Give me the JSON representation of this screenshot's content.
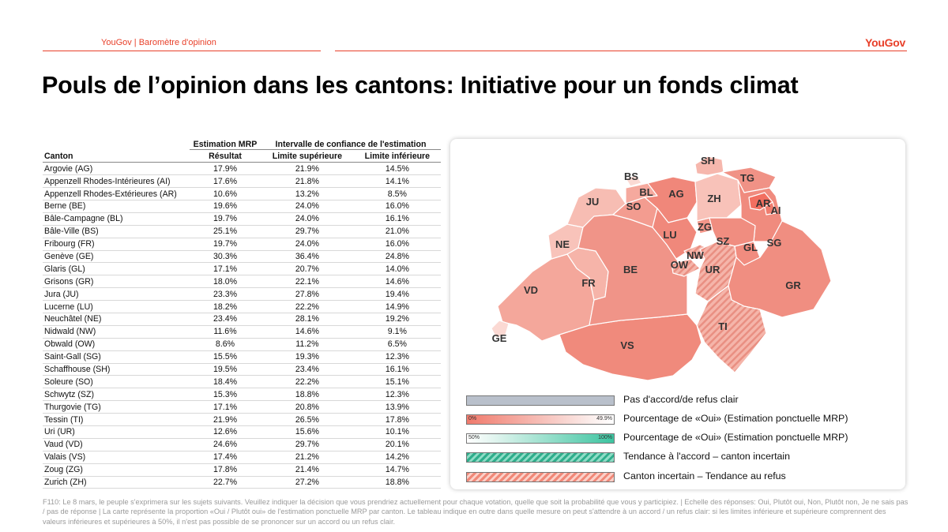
{
  "header": {
    "brand_text": "YouGov | Baromètre d'opinion",
    "logo_text": "YouGov",
    "title": "Pouls de l’opinion dans les cantons: Initiative pour un fonds climat"
  },
  "table": {
    "group_headers": {
      "estimate": "Estimation MRP",
      "interval": "Intervalle de confiance de l'estimation"
    },
    "columns": [
      "Canton",
      "Résultat",
      "Limite supérieure",
      "Limite inférieure"
    ],
    "rows": [
      [
        "Argovie (AG)",
        "17.9%",
        "21.9%",
        "14.5%"
      ],
      [
        "Appenzell Rhodes-Intérieures (AI)",
        "17.6%",
        "21.8%",
        "14.1%"
      ],
      [
        "Appenzell Rhodes-Extérieures (AR)",
        "10.6%",
        "13.2%",
        "8.5%"
      ],
      [
        "Berne (BE)",
        "19.6%",
        "24.0%",
        "16.0%"
      ],
      [
        "Bâle-Campagne (BL)",
        "19.7%",
        "24.0%",
        "16.1%"
      ],
      [
        "Bâle-Ville (BS)",
        "25.1%",
        "29.7%",
        "21.0%"
      ],
      [
        "Fribourg (FR)",
        "19.7%",
        "24.0%",
        "16.0%"
      ],
      [
        "Genève (GE)",
        "30.3%",
        "36.4%",
        "24.8%"
      ],
      [
        "Glaris (GL)",
        "17.1%",
        "20.7%",
        "14.0%"
      ],
      [
        "Grisons (GR)",
        "18.0%",
        "22.1%",
        "14.6%"
      ],
      [
        "Jura (JU)",
        "23.3%",
        "27.8%",
        "19.4%"
      ],
      [
        "Lucerne (LU)",
        "18.2%",
        "22.2%",
        "14.9%"
      ],
      [
        "Neuchâtel (NE)",
        "23.4%",
        "28.1%",
        "19.2%"
      ],
      [
        "Nidwald (NW)",
        "11.6%",
        "14.6%",
        "9.1%"
      ],
      [
        "Obwald (OW)",
        "8.6%",
        "11.2%",
        "6.5%"
      ],
      [
        "Saint-Gall (SG)",
        "15.5%",
        "19.3%",
        "12.3%"
      ],
      [
        "Schaffhouse (SH)",
        "19.5%",
        "23.4%",
        "16.1%"
      ],
      [
        "Soleure (SO)",
        "18.4%",
        "22.2%",
        "15.1%"
      ],
      [
        "Schwytz (SZ)",
        "15.3%",
        "18.8%",
        "12.3%"
      ],
      [
        "Thurgovie (TG)",
        "17.1%",
        "20.8%",
        "13.9%"
      ],
      [
        "Tessin (TI)",
        "21.9%",
        "26.5%",
        "17.8%"
      ],
      [
        "Uri (UR)",
        "12.6%",
        "15.6%",
        "10.1%"
      ],
      [
        "Vaud (VD)",
        "24.6%",
        "29.7%",
        "20.1%"
      ],
      [
        "Valais (VS)",
        "17.4%",
        "21.2%",
        "14.2%"
      ],
      [
        "Zoug (ZG)",
        "17.8%",
        "21.4%",
        "14.7%"
      ],
      [
        "Zurich (ZH)",
        "22.7%",
        "27.2%",
        "18.8%"
      ]
    ]
  },
  "map": {
    "labels": [
      "SH",
      "BS",
      "TG",
      "BL",
      "AG",
      "ZH",
      "JU",
      "SO",
      "AR",
      "AI",
      "ZG",
      "LU",
      "SZ",
      "SG",
      "GL",
      "NE",
      "NW",
      "OW",
      "UR",
      "BE",
      "GR",
      "FR",
      "VD",
      "TI",
      "GE",
      "VS"
    ]
  },
  "legend": {
    "items": [
      "Pas d'accord/de refus clair",
      "Pourcentage de «Oui» (Estimation ponctuelle MRP)",
      "Pourcentage de «Oui» (Estimation ponctuelle MRP)",
      "Tendance à l'accord – canton incertain",
      "Canton incertain – Tendance au refus"
    ],
    "red_scale": [
      "0%",
      "49.9%"
    ],
    "green_scale": [
      "50%",
      "100%"
    ]
  },
  "colors": {
    "brand": "#e8402a",
    "map_dark": "#f08a7c",
    "map_mid": "#f4a79b",
    "map_light": "#fbd9d3",
    "panel_grey": "#b9c0cb",
    "green": "#3cc4a0"
  },
  "footnote": "F110: Le 8 mars, le peuple s'exprimera sur les sujets suivants. Veuillez indiquer la décision que vous prendriez actuellement pour chaque votation, quelle que soit la probabilité que vous y participiez. | Echelle des réponses: Oui, Plutôt oui, Non, Plutôt non, Je ne sais pas / pas de réponse | La carte représente la proportion «Oui / Plutôt oui» de l'estimation ponctuelle MRP par canton. Le tableau indique en outre dans quelle mesure on peut s'attendre à un accord / un refus clair: si les limites inférieure et supérieure comprennent des valeurs inférieures et supérieures à 50%, il n'est pas possible de se prononcer sur un accord ou un refus clair."
}
